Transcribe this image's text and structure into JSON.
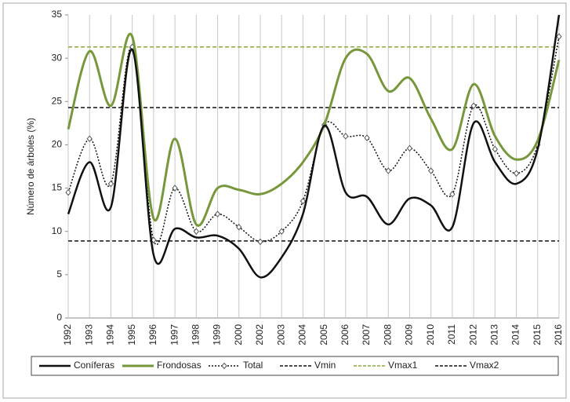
{
  "chart_data": {
    "type": "line",
    "y_label": "Número de árboles (%)",
    "categories": [
      "1992",
      "1993",
      "1994",
      "1995",
      "1996",
      "1997",
      "1998",
      "1999",
      "2000",
      "2002",
      "2003",
      "2004",
      "2005",
      "2006",
      "2007",
      "2008",
      "2009",
      "2010",
      "2011",
      "2012",
      "2013",
      "2014",
      "2015",
      "2016"
    ],
    "ylim": [
      0,
      35
    ],
    "yticks": [
      0,
      5,
      10,
      15,
      20,
      25,
      30,
      35
    ],
    "grid": "x",
    "smooth": true,
    "series": [
      {
        "name": "Coníferas",
        "color": "#111111",
        "style": "solid",
        "width": 2.5,
        "values": [
          12,
          18,
          12.8,
          31,
          7.3,
          10.3,
          9.3,
          9.5,
          8,
          4.7,
          7,
          12,
          22.2,
          14.5,
          14,
          10.8,
          13.8,
          13,
          10.5,
          22.5,
          18,
          15.5,
          19.5,
          35
        ]
      },
      {
        "name": "Frondosas",
        "color": "#77983a",
        "style": "solid",
        "width": 3,
        "values": [
          21.8,
          30.8,
          24.5,
          32.5,
          11.5,
          20.7,
          10.8,
          15,
          14.8,
          14.3,
          15.5,
          18,
          22.3,
          30,
          30.5,
          26.2,
          27.7,
          23,
          19.5,
          27,
          21,
          18.3,
          20.5,
          29.8
        ]
      },
      {
        "name": "Total",
        "color": "#111111",
        "style": "dotted",
        "width": 1.5,
        "marker": "diamond",
        "values": [
          14.5,
          20.7,
          15.5,
          31.3,
          9,
          15,
          10,
          12,
          10.5,
          8.8,
          10,
          13.5,
          22.3,
          21,
          20.8,
          17,
          19.6,
          17,
          14.3,
          24.5,
          19.5,
          16.7,
          20,
          32.5
        ]
      }
    ],
    "reference_lines": [
      {
        "name": "Vmin",
        "color": "#111111",
        "value": 8.9
      },
      {
        "name": "Vmax1",
        "color": "#8aaa3a",
        "value": 31.3
      },
      {
        "name": "Vmax2",
        "color": "#111111",
        "value": 24.3
      }
    ]
  }
}
